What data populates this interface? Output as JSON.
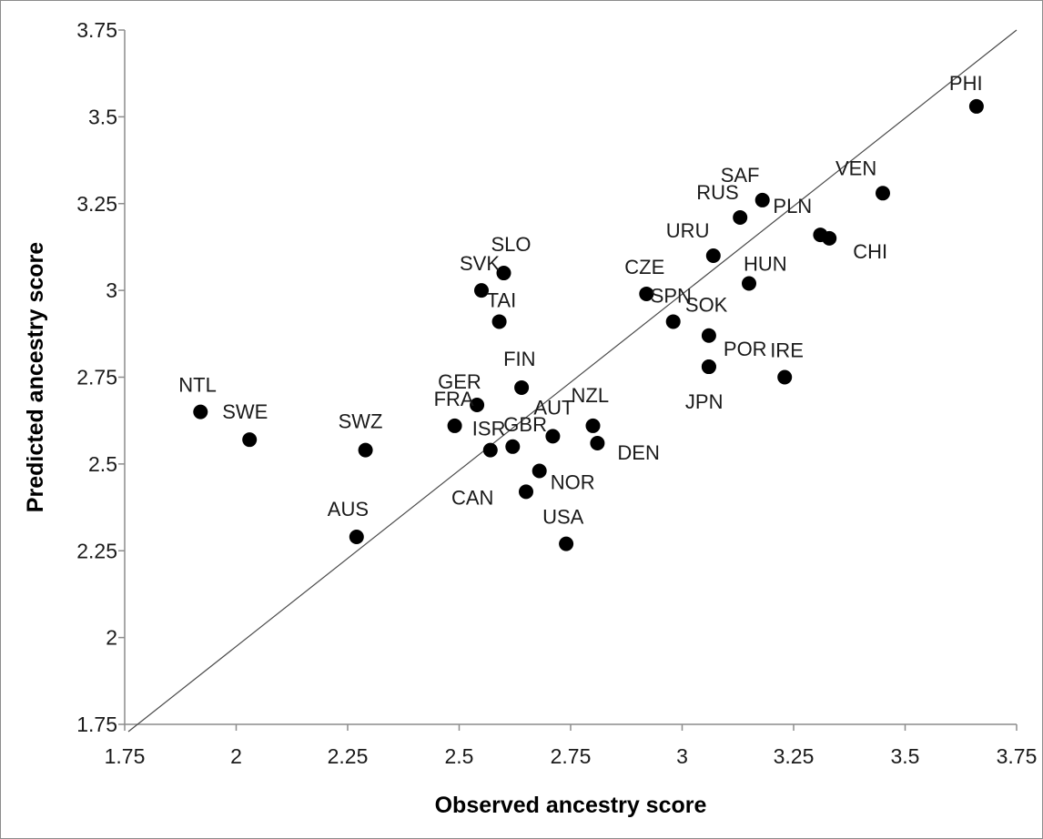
{
  "chart_data": {
    "type": "scatter",
    "xlabel": "Observed ancestry score",
    "ylabel": "Predicted ancestry score",
    "xlim": [
      1.75,
      3.75
    ],
    "ylim": [
      1.75,
      3.75
    ],
    "xticks": [
      "1.75",
      "2",
      "2.25",
      "2.5",
      "2.75",
      "3",
      "3.25",
      "3.5",
      "3.75"
    ],
    "yticks": [
      "1.75",
      "2",
      "2.25",
      "2.5",
      "2.75",
      "3",
      "3.25",
      "3.5",
      "3.75"
    ],
    "grid": false,
    "reference_line": {
      "type": "identity",
      "from": [
        1.75,
        1.75
      ],
      "to": [
        3.75,
        3.75
      ]
    },
    "marker_color": "#000000",
    "points": [
      {
        "label": "PHI",
        "x": 3.66,
        "y": 3.53
      },
      {
        "label": "VEN",
        "x": 3.45,
        "y": 3.28
      },
      {
        "label": "SAF",
        "x": 3.18,
        "y": 3.26
      },
      {
        "label": "RUS",
        "x": 3.13,
        "y": 3.21
      },
      {
        "label": "PLN",
        "x": 3.31,
        "y": 3.16
      },
      {
        "label": "CHI",
        "x": 3.33,
        "y": 3.15
      },
      {
        "label": "URU",
        "x": 3.07,
        "y": 3.1
      },
      {
        "label": "HUN",
        "x": 3.15,
        "y": 3.02
      },
      {
        "label": "SLO",
        "x": 2.6,
        "y": 3.05
      },
      {
        "label": "SVK",
        "x": 2.55,
        "y": 3.0
      },
      {
        "label": "TAI",
        "x": 2.59,
        "y": 2.91
      },
      {
        "label": "CZE",
        "x": 2.92,
        "y": 2.99
      },
      {
        "label": "SPN",
        "x": 2.98,
        "y": 2.91
      },
      {
        "label": "SOK",
        "x": 3.06,
        "y": 2.87
      },
      {
        "label": "POR",
        "x": 3.06,
        "y": 2.78
      },
      {
        "label": "IRE",
        "x": 3.23,
        "y": 2.75
      },
      {
        "label": "JPN",
        "x": 3.06,
        "y": 2.78
      },
      {
        "label": "FIN",
        "x": 2.64,
        "y": 2.72
      },
      {
        "label": "GER",
        "x": 2.54,
        "y": 2.67
      },
      {
        "label": "FRA",
        "x": 2.49,
        "y": 2.61
      },
      {
        "label": "ISR",
        "x": 2.57,
        "y": 2.54
      },
      {
        "label": "GBR",
        "x": 2.62,
        "y": 2.55
      },
      {
        "label": "AUT",
        "x": 2.71,
        "y": 2.58
      },
      {
        "label": "NZL",
        "x": 2.8,
        "y": 2.61
      },
      {
        "label": "DEN",
        "x": 2.81,
        "y": 2.56
      },
      {
        "label": "NOR",
        "x": 2.68,
        "y": 2.48
      },
      {
        "label": "CAN",
        "x": 2.65,
        "y": 2.42
      },
      {
        "label": "USA",
        "x": 2.74,
        "y": 2.27
      },
      {
        "label": "NTL",
        "x": 1.92,
        "y": 2.65
      },
      {
        "label": "SWE",
        "x": 2.03,
        "y": 2.57
      },
      {
        "label": "SWZ",
        "x": 2.29,
        "y": 2.54
      },
      {
        "label": "AUS",
        "x": 2.27,
        "y": 2.29
      }
    ]
  }
}
